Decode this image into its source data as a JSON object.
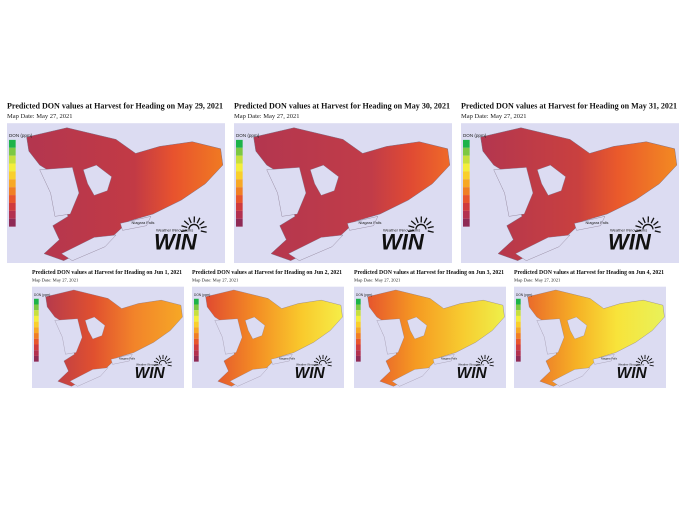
{
  "panels": [
    {
      "title": "Predicted DON values at Harvest for Heading on May 29, 2021",
      "map_date": "Map Date: May 27, 2021",
      "legend_title": "DON (ppm)",
      "place_label": "Niagara Falls",
      "logo_sub": "Weather INnovations",
      "logo": "WIN"
    },
    {
      "title": "Predicted DON values at Harvest for Heading on May 30, 2021",
      "map_date": "Map Date: May 27, 2021",
      "legend_title": "DON (ppm)",
      "place_label": "Niagara Falls",
      "logo_sub": "Weather INnovations",
      "logo": "WIN"
    },
    {
      "title": "Predicted DON values at Harvest for Heading on May 31, 2021",
      "map_date": "Map Date: May 27, 2021",
      "legend_title": "DON (ppm)",
      "place_label": "Niagara Falls",
      "logo_sub": "Weather INnovations",
      "logo": "WIN"
    },
    {
      "title": "Predicted DON values at Harvest for Heading on Jun 1, 2021",
      "map_date": "Map Date: May 27, 2021",
      "legend_title": "DON (ppm)",
      "place_label": "Niagara Falls",
      "logo_sub": "Weather INnovations",
      "logo": "WIN"
    },
    {
      "title": "Predicted DON values at Harvest for Heading on Jun 2, 2021",
      "map_date": "Map Date: May 27, 2021",
      "legend_title": "DON (ppm)",
      "place_label": "Niagara Falls",
      "logo_sub": "Weather INnovations",
      "logo": "WIN"
    },
    {
      "title": "Predicted DON values at Harvest for Heading on Jun 3, 2021",
      "map_date": "Map Date: May 27, 2021",
      "legend_title": "DON (ppm)",
      "place_label": "Niagara Falls",
      "logo_sub": "Weather INnovations",
      "logo": "WIN"
    },
    {
      "title": "Predicted DON values at Harvest for Heading on Jun 4, 2021",
      "map_date": "Map Date: May 27, 2021",
      "legend_title": "DON (ppm)",
      "place_label": "Niagara Falls",
      "logo_sub": "Weather INnovations",
      "logo": "WIN"
    }
  ]
}
